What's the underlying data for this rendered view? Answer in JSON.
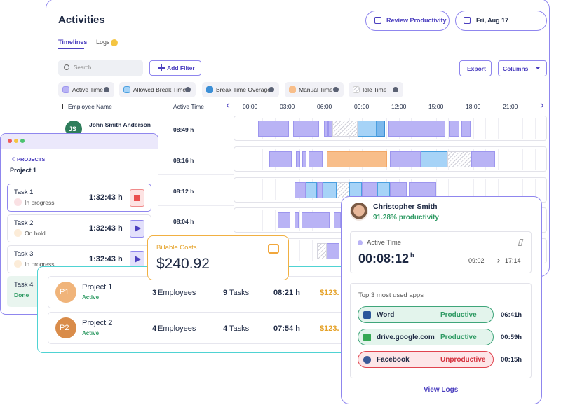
{
  "activities": {
    "title": "Activities",
    "review_button": "Review Productivity",
    "date_button": "Fri, Aug 17",
    "tabs": [
      "Timelines",
      "Logs"
    ],
    "search_placeholder": "Search",
    "add_filter": "Add Filter",
    "export": "Export",
    "columns": "Columns",
    "legend": [
      "Active Time",
      "Allowed Break Time",
      "Break Time Overages",
      "Manual Time",
      "Idle Time"
    ],
    "header": {
      "employee": "Employee Name",
      "active_time": "Active Time",
      "hours": [
        "00:00",
        "03:00",
        "06:00",
        "09:00",
        "12:00",
        "15:00",
        "18:00",
        "21:00"
      ]
    },
    "rows": [
      {
        "initials": "JS",
        "name": "John Smith Anderson",
        "active_time": "08:49 h"
      },
      {
        "active_time": "08:16 h"
      },
      {
        "active_time": "08:12 h"
      },
      {
        "active_time": "08:04 h"
      }
    ]
  },
  "projects_panel": {
    "back": "PROJECTS",
    "project": "Project 1",
    "tasks": [
      {
        "name": "Task 1",
        "time": "1:32:43 h",
        "status": "In progress"
      },
      {
        "name": "Task 2",
        "time": "1:32:43 h",
        "status": "On hold"
      },
      {
        "name": "Task 3",
        "time": "1:32:43 h",
        "status": "In progress"
      },
      {
        "name": "Task 4",
        "status": "Done"
      }
    ]
  },
  "billable": {
    "label": "Billable Costs",
    "amount": "$240.92"
  },
  "projects_table": [
    {
      "badge": "P1",
      "name": "Project 1",
      "status": "Active",
      "employees": "3",
      "employees_label": "Employees",
      "tasks": "9",
      "tasks_label": "Tasks",
      "time": "08:21 h",
      "cost": "$123."
    },
    {
      "badge": "P2",
      "name": "Project 2",
      "status": "Active",
      "employees": "4",
      "employees_label": "Employees",
      "tasks": "4",
      "tasks_label": "Tasks",
      "time": "07:54 h",
      "cost": "$123."
    }
  ],
  "user_card": {
    "name": "Christopher Smith",
    "productivity": "91.28% productivity",
    "active_label": "Active Time",
    "active_time": "00:08:12",
    "unit": "h",
    "start": "09:02",
    "end": "17:14",
    "apps_title": "Top 3 most used apps",
    "apps": [
      {
        "name": "Word",
        "label": "Productive",
        "time": "06:41h"
      },
      {
        "name": "drive.google.com",
        "label": "Productive",
        "time": "00:59h"
      },
      {
        "name": "Facebook",
        "label": "Unproductive",
        "time": "00:15h"
      }
    ],
    "view_logs": "View Logs"
  }
}
